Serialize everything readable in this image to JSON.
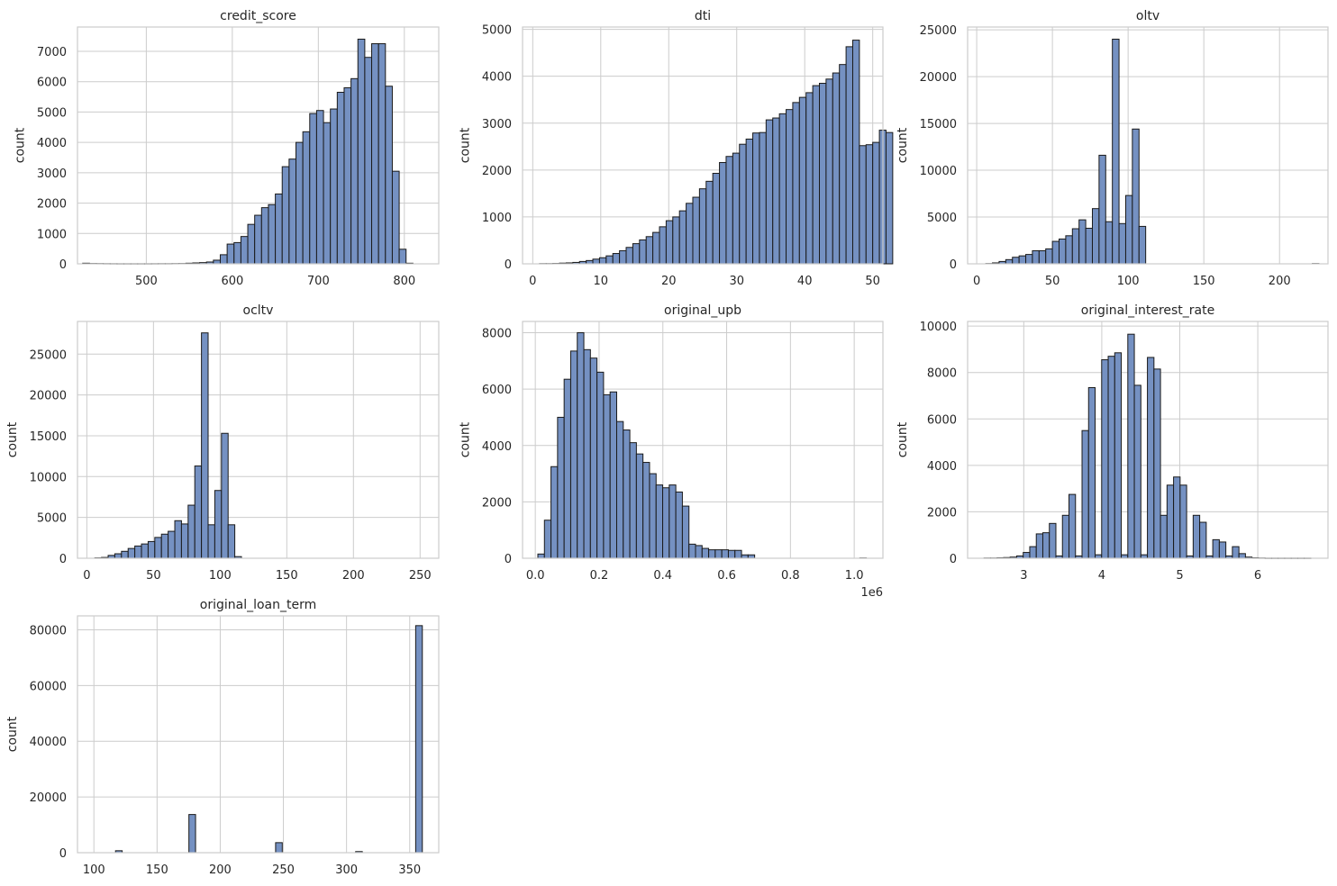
{
  "style": {
    "bar_color": "#7591c2",
    "bar_edge": "#1a1a1a",
    "grid_color": "#cccccc",
    "background": "#ffffff"
  },
  "chart_data": [
    {
      "type": "bar",
      "title": "credit_score",
      "ylabel": "count",
      "xlim": [
        420,
        840
      ],
      "ylim": [
        0,
        7800
      ],
      "xticks": [
        500,
        600,
        700,
        800
      ],
      "xtick_labels": [
        "500",
        "600",
        "700",
        "800"
      ],
      "yticks": [
        0,
        1000,
        2000,
        3000,
        4000,
        5000,
        6000,
        7000
      ],
      "ytick_labels": [
        "0",
        "1000",
        "2000",
        "3000",
        "4000",
        "5000",
        "6000",
        "7000"
      ],
      "bin_start": 426,
      "bin_width": 8,
      "values": [
        20,
        10,
        8,
        6,
        5,
        4,
        4,
        4,
        4,
        4,
        5,
        6,
        6,
        8,
        10,
        20,
        30,
        40,
        60,
        120,
        300,
        650,
        700,
        900,
        1300,
        1600,
        1850,
        1950,
        2300,
        3200,
        3450,
        4000,
        4350,
        4950,
        5050,
        4650,
        5100,
        5650,
        5800,
        6100,
        7400,
        6800,
        7250,
        7250,
        5850,
        3050,
        480,
        20
      ]
    },
    {
      "type": "bar",
      "title": "dti",
      "ylabel": "count",
      "xlim": [
        -1.5,
        51.5
      ],
      "ylim": [
        0,
        5050
      ],
      "xticks": [
        0,
        10,
        20,
        30,
        40,
        50
      ],
      "xtick_labels": [
        "0",
        "10",
        "20",
        "30",
        "40",
        "50"
      ],
      "yticks": [
        0,
        1000,
        2000,
        3000,
        4000,
        5000
      ],
      "ytick_labels": [
        "0",
        "1000",
        "2000",
        "3000",
        "4000",
        "5000"
      ],
      "bin_start": 1,
      "bin_width": 0.98,
      "values": [
        5,
        5,
        8,
        15,
        20,
        30,
        50,
        70,
        100,
        130,
        170,
        220,
        280,
        350,
        430,
        510,
        580,
        670,
        790,
        920,
        1000,
        1130,
        1290,
        1420,
        1600,
        1760,
        1930,
        2160,
        2290,
        2360,
        2550,
        2660,
        2790,
        2800,
        3070,
        3110,
        3200,
        3290,
        3440,
        3550,
        3650,
        3800,
        3850,
        3940,
        4070,
        4250,
        4630,
        4770,
        2520,
        2540,
        2590,
        2850,
        2800
      ]
    },
    {
      "type": "bar",
      "title": "oltv",
      "ylabel": "count",
      "xlim": [
        -6,
        232
      ],
      "ylim": [
        0,
        25300
      ],
      "xticks": [
        0,
        50,
        100,
        150,
        200
      ],
      "xtick_labels": [
        "0",
        "50",
        "100",
        "150",
        "200"
      ],
      "yticks": [
        0,
        5000,
        10000,
        15000,
        20000,
        25000
      ],
      "ytick_labels": [
        "0",
        "5000",
        "10000",
        "15000",
        "20000",
        "25000"
      ],
      "bin_start": 6,
      "bin_width": 4.4,
      "values": [
        30,
        100,
        250,
        450,
        700,
        850,
        1000,
        1400,
        1400,
        1600,
        2400,
        2650,
        3000,
        3750,
        4700,
        3800,
        5900,
        11600,
        4500,
        24000,
        4300,
        7300,
        14400,
        4000,
        0,
        0,
        0,
        0,
        0,
        0,
        0,
        0,
        0,
        0,
        0,
        0,
        0,
        0,
        0,
        0,
        0,
        0,
        0,
        0,
        0,
        0,
        0,
        0,
        0,
        30
      ]
    },
    {
      "type": "bar",
      "title": "ocltv",
      "ylabel": "count",
      "xlim": [
        -7,
        264
      ],
      "ylim": [
        0,
        29000
      ],
      "xticks": [
        0,
        50,
        100,
        150,
        200,
        250
      ],
      "xtick_labels": [
        "0",
        "50",
        "100",
        "150",
        "200",
        "250"
      ],
      "yticks": [
        0,
        5000,
        10000,
        15000,
        20000,
        25000
      ],
      "ytick_labels": [
        "0",
        "5000",
        "10000",
        "15000",
        "20000",
        "25000"
      ],
      "bin_start": 6,
      "bin_width": 5,
      "values": [
        50,
        100,
        350,
        550,
        850,
        1200,
        1500,
        1750,
        2050,
        2550,
        2950,
        3300,
        4600,
        4200,
        6500,
        11300,
        27600,
        4100,
        8300,
        15300,
        4100,
        200
      ]
    },
    {
      "type": "bar",
      "title": "original_upb",
      "ylabel": "count",
      "offset_label": "1e6",
      "xlim": [
        -0.04,
        1.09
      ],
      "ylim": [
        0,
        8400
      ],
      "xticks": [
        0.0,
        0.2,
        0.4,
        0.6,
        0.8,
        1.0
      ],
      "xtick_labels": [
        "0.0",
        "0.2",
        "0.4",
        "0.6",
        "0.8",
        "1.0"
      ],
      "yticks": [
        0,
        2000,
        4000,
        6000,
        8000
      ],
      "ytick_labels": [
        "0",
        "2000",
        "4000",
        "6000",
        "8000"
      ],
      "bin_start": 0.008,
      "bin_width": 0.0206,
      "values": [
        150,
        1350,
        3250,
        5000,
        6350,
        7350,
        8000,
        7400,
        7100,
        6600,
        5800,
        5900,
        4850,
        4550,
        4100,
        3700,
        3400,
        3000,
        2600,
        2500,
        2600,
        2350,
        1850,
        500,
        450,
        350,
        300,
        300,
        300,
        280,
        280,
        120,
        120,
        0,
        0,
        0,
        0,
        0,
        0,
        0,
        0,
        0,
        0,
        0,
        0,
        0,
        0,
        0,
        0,
        10
      ]
    },
    {
      "type": "bar",
      "title": "original_interest_rate",
      "ylabel": "count",
      "xlim": [
        2.28,
        6.9
      ],
      "ylim": [
        0,
        10200
      ],
      "xticks": [
        3,
        4,
        5,
        6
      ],
      "xtick_labels": [
        "3",
        "4",
        "5",
        "6"
      ],
      "yticks": [
        0,
        2000,
        4000,
        6000,
        8000,
        10000
      ],
      "ytick_labels": [
        "0",
        "2000",
        "4000",
        "6000",
        "8000",
        "10000"
      ],
      "bin_start": 2.49,
      "bin_width": 0.0838,
      "values": [
        10,
        10,
        20,
        30,
        50,
        100,
        250,
        500,
        1050,
        1100,
        1500,
        100,
        1850,
        2750,
        100,
        5500,
        7350,
        150,
        8550,
        8700,
        8850,
        150,
        9650,
        7450,
        150,
        8650,
        8150,
        1850,
        3150,
        3500,
        3150,
        100,
        1850,
        1550,
        100,
        800,
        700,
        100,
        500,
        200,
        50,
        20,
        10,
        5,
        5,
        5,
        5,
        5,
        5,
        5
      ]
    },
    {
      "type": "bar",
      "title": "original_loan_term",
      "ylabel": "count",
      "xlim": [
        87,
        373
      ],
      "ylim": [
        0,
        85000
      ],
      "xticks": [
        100,
        150,
        200,
        250,
        300,
        350
      ],
      "xtick_labels": [
        "100",
        "150",
        "200",
        "250",
        "300",
        "350"
      ],
      "yticks": [
        0,
        20000,
        40000,
        60000,
        80000
      ],
      "ytick_labels": [
        "0",
        "20000",
        "40000",
        "60000",
        "80000"
      ],
      "bin_start": 96,
      "bin_width": 5.28,
      "values": [
        0,
        0,
        0,
        0,
        700,
        0,
        0,
        0,
        0,
        0,
        0,
        0,
        0,
        0,
        0,
        13700,
        0,
        0,
        0,
        0,
        0,
        0,
        0,
        0,
        0,
        0,
        0,
        0,
        3600,
        0,
        0,
        0,
        0,
        0,
        0,
        0,
        0,
        0,
        0,
        0,
        400,
        0,
        0,
        0,
        0,
        0,
        0,
        0,
        0,
        81500
      ]
    }
  ]
}
